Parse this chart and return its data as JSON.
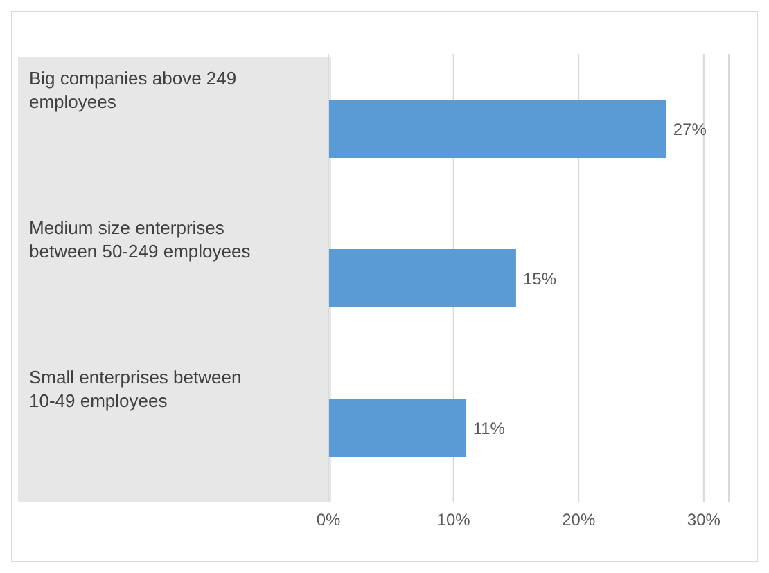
{
  "chart_data": {
    "type": "bar",
    "orientation": "horizontal",
    "categories": [
      "Big companies above 249 employees",
      "Medium size enterprises between 50-249 employees",
      "Small enterprises between 10-49 employees"
    ],
    "values": [
      27,
      15,
      11
    ],
    "color": "#5b9bd5",
    "value_labels": [
      "27%",
      "15%",
      "11%"
    ],
    "xlim": [
      0,
      32
    ],
    "xticks": [
      {
        "value": 0,
        "label": "0%"
      },
      {
        "value": 10,
        "label": "10%"
      },
      {
        "value": 20,
        "label": "20%"
      },
      {
        "value": 30,
        "label": "30%"
      }
    ],
    "grid": "x"
  }
}
